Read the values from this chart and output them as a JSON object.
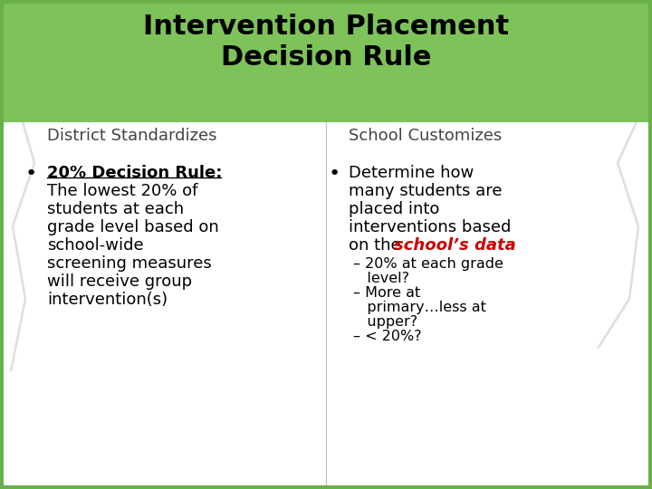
{
  "title_line1": "Intervention Placement",
  "title_line2": "Decision Rule",
  "title_bg_color": "#7dc35a",
  "title_text_color": "#000000",
  "slide_bg_color": "#ffffff",
  "border_color": "#6ab04a",
  "col1_header": "District Standardizes",
  "col2_header": "School Customizes",
  "col1_bullet_bold_underline": "20% Decision Rule:",
  "col1_bullet_text": "The lowest 20% of\nstudents at each\ngrade level based on\nschool-wide\nscreening measures\nwill receive group\nintervention(s)",
  "col2_bullet_intro_lines": [
    "Determine how",
    "many students are",
    "placed into",
    "interventions based",
    "on the "
  ],
  "col2_bullet_red_italic": "school’s data",
  "col2_sub1_line1": "– 20% at each grade",
  "col2_sub1_line2": "   level?",
  "col2_sub2_line1": "– More at",
  "col2_sub2_line2": "   primary…less at",
  "col2_sub2_line3": "   upper?",
  "col2_sub3_line1": "– < 20%?",
  "header_font_size": 13,
  "body_font_size": 13,
  "title_font_size": 22,
  "sub_font_size": 11.5
}
